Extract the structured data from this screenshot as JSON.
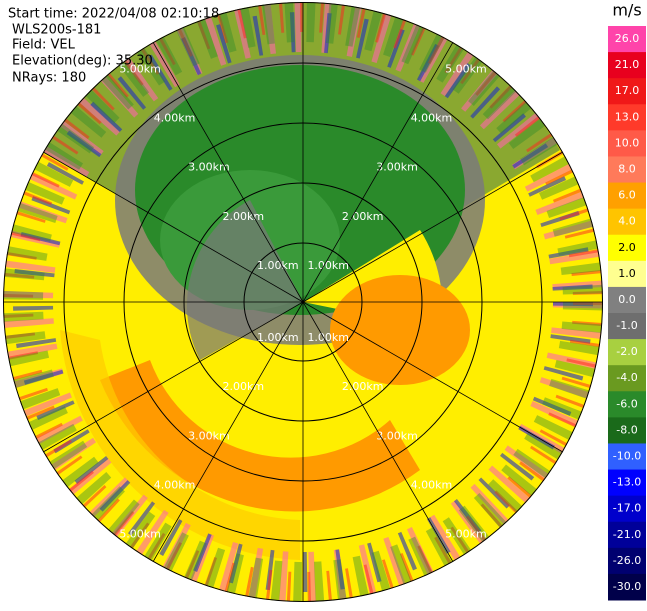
{
  "header": {
    "start_time": "Start time: 2022/04/08 02:10:18",
    "instrument": "WLS200s-181",
    "field": "Field: VEL",
    "elevation": "Elevation(deg): 35.30",
    "nrays": "NRays: 180"
  },
  "rings": [
    "1.00km",
    "2.00km",
    "3.00km",
    "4.00km",
    "5.00km"
  ],
  "colorbar": {
    "unit": "m/s",
    "labels": [
      "26.0",
      "21.0",
      "17.0",
      "13.0",
      "10.0",
      "8.0",
      "6.0",
      "4.0",
      "2.0",
      "1.0",
      "0.0",
      "-1.0",
      "-2.0",
      "-4.0",
      "-6.0",
      "-8.0",
      "-10.0",
      "-13.0",
      "-17.0",
      "-21.0",
      "-26.0",
      "-30.0"
    ],
    "colors": [
      "#ff44aa",
      "#e8001e",
      "#f01818",
      "#ff3a2a",
      "#ff5a48",
      "#ff7a5a",
      "#ffa000",
      "#ffc400",
      "#ffff00",
      "#ffff90",
      "#808080",
      "#6e6e6e",
      "#a8d040",
      "#6a9a20",
      "#2a8a2a",
      "#1a6a1a",
      "#3060ff",
      "#0000ff",
      "#0000cc",
      "#000099",
      "#000070",
      "#00004a"
    ]
  }
}
